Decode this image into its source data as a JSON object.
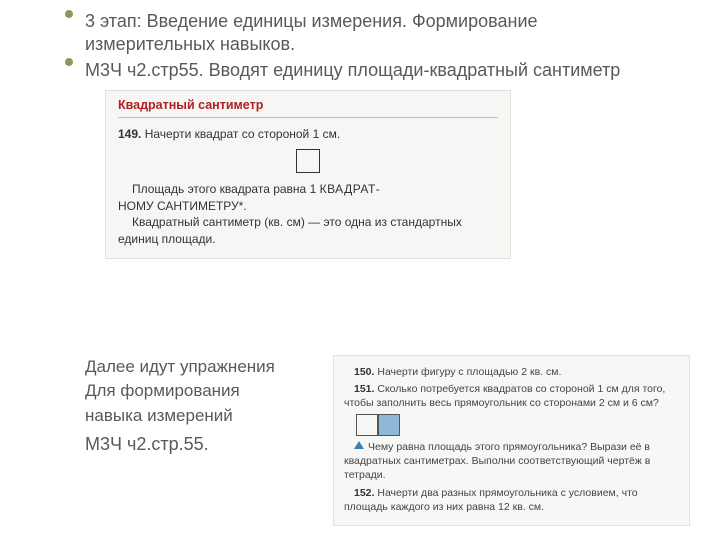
{
  "heading": {
    "line1": "3 этап: Введение единицы измерения. Формирование измерительных навыков.",
    "line2": "М3Ч ч2.стр55. Вводят единицу площади-квадратный сантиметр"
  },
  "excerpt1": {
    "title": "Квадратный сантиметр",
    "task_num": "149.",
    "task_text": "Начерти квадрат со стороной 1 см.",
    "body1a": "Площадь этого квадрата равна 1 ",
    "body1b": "КВАДРАТ-",
    "body2": "НОМУ САНТИМЕТРУ*.",
    "body3": "Квадратный сантиметр (кв. см) — это одна из стандартных единиц площади."
  },
  "lower_text": {
    "l1": "Далее идут упражнения",
    "l2": "Для формирования",
    "l3": "навыка измерений",
    "ref": "М3Ч ч2.стр.55."
  },
  "excerpt2": {
    "t150_num": "150.",
    "t150": "Начерти фигуру с площадью 2 кв. см.",
    "t151_num": "151.",
    "t151": "Сколько потребуется квадратов со стороной 1 см для того, чтобы заполнить весь прямоугольник со сторонами 2 см и 6 см?",
    "q_text": "Чему равна площадь этого прямоугольника? Вырази её в квадратных сантиметрах. Выполни соответствующий чертёж в тетради.",
    "t152_num": "152.",
    "t152": "Начерти два разных прямоугольника с условием, что площадь каждого из них равна 12 кв. см."
  },
  "style": {
    "bg": "#ffffff",
    "text_color": "#595959",
    "bullet_color": "#8a9a5b",
    "excerpt_bg": "#f6f6f4",
    "excerpt_title_color": "#b02020",
    "shade_color": "#8fb8d8",
    "tri_color": "#3a7fb0",
    "heading_fontsize": 18,
    "body_fontsize": 12,
    "lower_fontsize": 17
  }
}
